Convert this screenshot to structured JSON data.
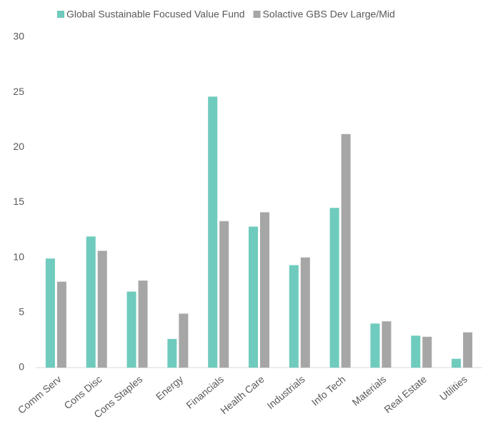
{
  "chart_data": {
    "type": "bar",
    "categories": [
      "Comm Serv",
      "Cons Disc",
      "Cons Staples",
      "Energy",
      "Financials",
      "Health Care",
      "Industrials",
      "Info Tech",
      "Materials",
      "Real Estate",
      "Utilities"
    ],
    "series": [
      {
        "name": "Global Sustainable Focused Value Fund",
        "color": "#6fcbbd",
        "values": [
          9.9,
          11.9,
          6.9,
          2.6,
          24.6,
          12.8,
          9.3,
          14.5,
          4.0,
          2.9,
          0.8
        ]
      },
      {
        "name": "Solactive GBS Dev Large/Mid",
        "color": "#a6a6a6",
        "values": [
          7.8,
          10.6,
          7.9,
          4.9,
          13.3,
          14.1,
          10.0,
          21.2,
          4.2,
          2.8,
          3.2
        ]
      }
    ],
    "ylim": [
      0,
      30
    ],
    "yticks": [
      0,
      5,
      10,
      15,
      20,
      25,
      30
    ],
    "grid": false,
    "legend": "top"
  }
}
